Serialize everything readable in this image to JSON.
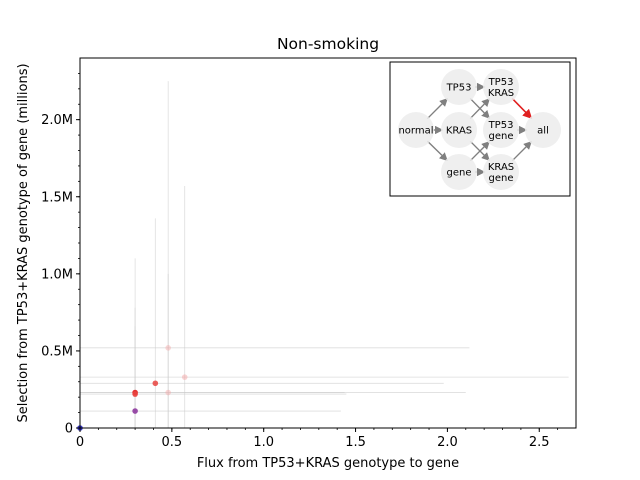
{
  "chart_data": {
    "type": "scatter",
    "title": "Non-smoking",
    "xlabel": "Flux from TP53+KRAS genotype to gene",
    "ylabel": "Selection from TP53+KRAS genotype of gene (millions)",
    "xlim": [
      0,
      2.7
    ],
    "ylim": [
      0,
      2.4
    ],
    "x_ticks": [
      {
        "value": 0,
        "label": "0"
      },
      {
        "value": 0.5,
        "label": "0.5"
      },
      {
        "value": 1.0,
        "label": "1.0"
      },
      {
        "value": 1.5,
        "label": "1.5"
      },
      {
        "value": 2.0,
        "label": "2.0"
      },
      {
        "value": 2.5,
        "label": "2.5"
      }
    ],
    "y_ticks": [
      {
        "value": 0,
        "label": "0"
      },
      {
        "value": 0.5,
        "label": "0.5M"
      },
      {
        "value": 1.0,
        "label": "1.0M"
      },
      {
        "value": 1.5,
        "label": "1.5M"
      },
      {
        "value": 2.0,
        "label": "2.0M"
      }
    ],
    "grid": false,
    "points": [
      {
        "x": 0.48,
        "y": 0.52,
        "xerr": [
          0.0,
          2.12
        ],
        "yerr": [
          0.0,
          2.25
        ],
        "color": "#f4a6a6",
        "alpha": 0.45
      },
      {
        "x": 0.57,
        "y": 0.33,
        "xerr": [
          0.0,
          2.66
        ],
        "yerr": [
          0.0,
          1.57
        ],
        "color": "#f4a6a6",
        "alpha": 0.5
      },
      {
        "x": 0.41,
        "y": 0.29,
        "xerr": [
          0.0,
          1.98
        ],
        "yerr": [
          0.0,
          1.36
        ],
        "color": "#e8433f",
        "alpha": 0.85
      },
      {
        "x": 0.48,
        "y": 0.23,
        "xerr": [
          0.0,
          2.1
        ],
        "yerr": [
          0.0,
          1.0
        ],
        "color": "#f4a6a6",
        "alpha": 0.45
      },
      {
        "x": 0.3,
        "y": 0.23,
        "xerr": [
          0.0,
          1.44
        ],
        "yerr": [
          0.0,
          1.1
        ],
        "color": "#e32626",
        "alpha": 0.95
      },
      {
        "x": 0.3,
        "y": 0.22,
        "xerr": [
          0.0,
          1.45
        ],
        "yerr": [
          0.0,
          0.78
        ],
        "color": "#e8433f",
        "alpha": 0.9
      },
      {
        "x": 0.3,
        "y": 0.11,
        "xerr": [
          0.0,
          1.42
        ],
        "yerr": [
          0.0,
          0.66
        ],
        "color": "#8e3a9e",
        "alpha": 0.9
      },
      {
        "x": 0.0,
        "y": 0.0,
        "xerr": [
          0.0,
          0.0
        ],
        "yerr": [
          0.0,
          0.0
        ],
        "color": "#2020c0",
        "alpha": 0.9
      }
    ],
    "inset_network": {
      "nodes": [
        {
          "id": "normal",
          "label": "normal",
          "col": 0,
          "row": 1
        },
        {
          "id": "TP53",
          "label": "TP53",
          "col": 1,
          "row": 0
        },
        {
          "id": "KRAS",
          "label": "KRAS",
          "col": 1,
          "row": 1
        },
        {
          "id": "gene",
          "label": "gene",
          "col": 1,
          "row": 2
        },
        {
          "id": "TP53_KRAS",
          "label": "TP53\nKRAS",
          "col": 2,
          "row": 0
        },
        {
          "id": "TP53_gene",
          "label": "TP53\ngene",
          "col": 2,
          "row": 1
        },
        {
          "id": "KRAS_gene",
          "label": "KRAS\ngene",
          "col": 2,
          "row": 2
        },
        {
          "id": "all",
          "label": "all",
          "col": 3,
          "row": 1
        }
      ],
      "edges": [
        {
          "from": "normal",
          "to": "TP53",
          "highlight": false
        },
        {
          "from": "normal",
          "to": "KRAS",
          "highlight": false
        },
        {
          "from": "normal",
          "to": "gene",
          "highlight": false
        },
        {
          "from": "TP53",
          "to": "TP53_KRAS",
          "highlight": false
        },
        {
          "from": "TP53",
          "to": "TP53_gene",
          "highlight": false
        },
        {
          "from": "KRAS",
          "to": "TP53_KRAS",
          "highlight": false
        },
        {
          "from": "KRAS",
          "to": "KRAS_gene",
          "highlight": false
        },
        {
          "from": "gene",
          "to": "TP53_gene",
          "highlight": false
        },
        {
          "from": "gene",
          "to": "KRAS_gene",
          "highlight": false
        },
        {
          "from": "TP53_KRAS",
          "to": "all",
          "highlight": true
        },
        {
          "from": "TP53_gene",
          "to": "all",
          "highlight": false
        },
        {
          "from": "KRAS_gene",
          "to": "all",
          "highlight": false
        }
      ],
      "edge_color": "#808080",
      "highlight_color": "#e02020",
      "node_fill": "#ececec"
    }
  }
}
